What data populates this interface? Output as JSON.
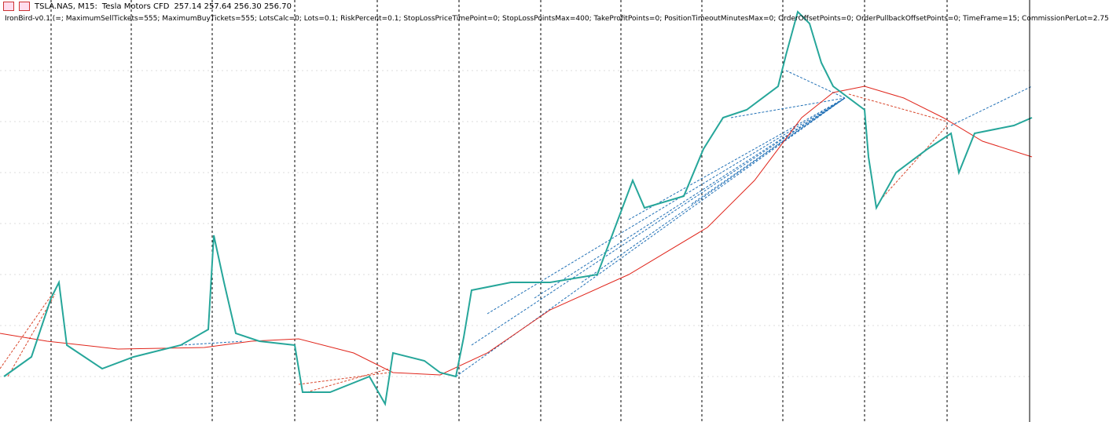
{
  "window": {
    "symbol": "TSLA.NAS, M15:",
    "description": "Tesla Motors CFD",
    "quote": "257.14 257.64 256.30 256.70"
  },
  "indicator": {
    "parameters": "IronBird-v0.1 (=; MaximumSellTickets=555; MaximumBuyTickets=555; LotsCalc=0; Lots=0.1; RiskPercent=0.1; StopLossPriceTimePoint=0; StopLossPointsMax=400; TakeProfitPoints=0; PositionTimeoutMinutesMax=0; OrderOffsetPoints=0; OrderPullbackOffsetPoints=0; TimeFrame=15; CommissionPerLot=2.75"
  }
}
